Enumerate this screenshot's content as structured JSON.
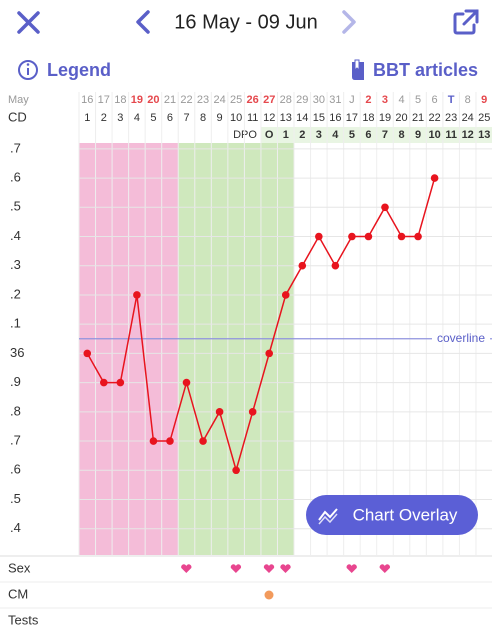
{
  "header": {
    "title": "16 May - 09 Jun"
  },
  "toolbar": {
    "legend": "Legend",
    "articles": "BBT articles"
  },
  "rows": {
    "month": "May",
    "cd": "CD",
    "dpo": "DPO",
    "sex": "Sex",
    "cm": "CM",
    "tests": "Tests"
  },
  "cycle_days": [
    1,
    2,
    3,
    4,
    5,
    6,
    7,
    8,
    9,
    10,
    11,
    12,
    13,
    14,
    15,
    16,
    17,
    18,
    19,
    20,
    21,
    22,
    23,
    24,
    25
  ],
  "dpo_days": [
    "O",
    1,
    2,
    3,
    4,
    5,
    6,
    7,
    8,
    9,
    10,
    11,
    12,
    13
  ],
  "button": "Chart Overlay",
  "chart_data": {
    "type": "line",
    "categories": [
      "16",
      "17",
      "18",
      "19",
      "20",
      "21",
      "22",
      "23",
      "24",
      "25",
      "26",
      "27",
      "28",
      "29",
      "30",
      "31",
      "J",
      "2",
      "3",
      "4",
      "5",
      "6",
      "T",
      "8",
      "9"
    ],
    "category_colors": [
      "#999",
      "#999",
      "#999",
      "#e5484d",
      "#e5484d",
      "#999",
      "#999",
      "#999",
      "#999",
      "#999",
      "#e5484d",
      "#e5484d",
      "#999",
      "#999",
      "#999",
      "#999",
      "#999",
      "#e5484d",
      "#e5484d",
      "#999",
      "#999",
      "#999",
      "#5a5fc8",
      "#999",
      "#e5484d"
    ],
    "values": [
      36.0,
      35.9,
      35.9,
      36.2,
      35.7,
      35.7,
      35.9,
      35.7,
      35.8,
      35.6,
      35.8,
      36.0,
      36.2,
      36.3,
      36.4,
      36.3,
      36.4,
      36.4,
      36.5,
      36.4,
      36.4,
      36.6,
      null,
      null,
      null
    ],
    "color": "#e8141e",
    "ylim": [
      35.31,
      36.72
    ],
    "yticks": [
      {
        "value": 36.7,
        "label": ".7"
      },
      {
        "value": 36.6,
        "label": ".6"
      },
      {
        "value": 36.5,
        "label": ".5"
      },
      {
        "value": 36.4,
        "label": ".4"
      },
      {
        "value": 36.3,
        "label": ".3"
      },
      {
        "value": 36.2,
        "label": ".2"
      },
      {
        "value": 36.1,
        "label": ".1"
      },
      36,
      {
        "value": 35.9,
        "label": ".9"
      },
      {
        "value": 35.8,
        "label": ".8"
      },
      {
        "value": 35.7,
        "label": ".7"
      },
      {
        "value": 35.6,
        "label": ".6"
      },
      {
        "value": 35.5,
        "label": ".5"
      },
      {
        "value": 35.4,
        "label": ".4"
      }
    ],
    "grid": true,
    "coverline": {
      "value": 36.05,
      "label": "coverline"
    }
  }
}
